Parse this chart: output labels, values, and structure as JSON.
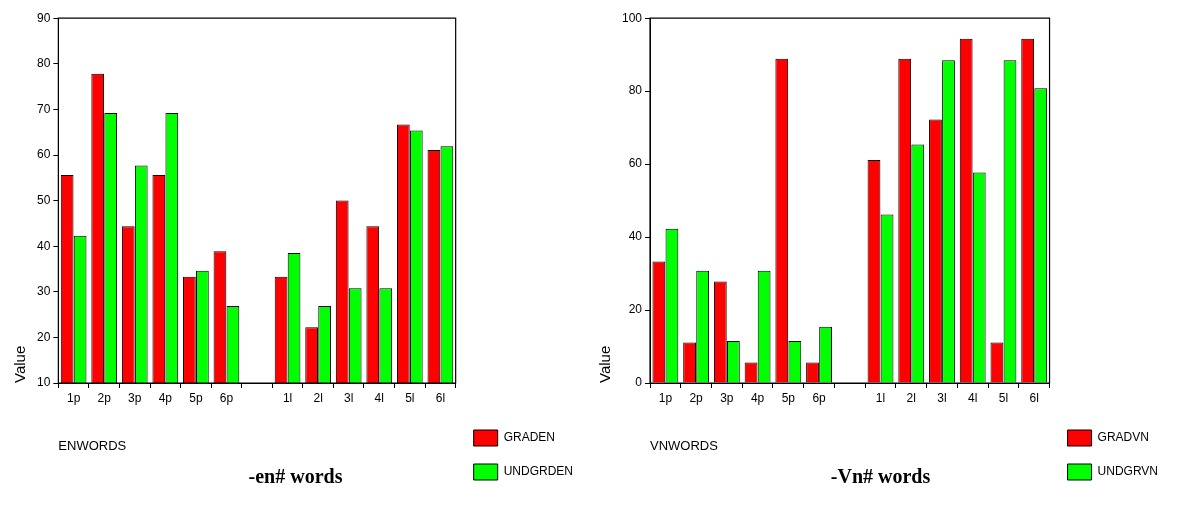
{
  "chart_data": [
    {
      "type": "bar",
      "title": "-en# words",
      "xlabel": "ENWORDS",
      "ylabel": "Value",
      "categories": [
        "1p",
        "2p",
        "3p",
        "4p",
        "5p",
        "6p",
        null,
        "1l",
        "2l",
        "3l",
        "4l",
        "5l",
        "6l"
      ],
      "series": [
        {
          "name": "GRADEN",
          "color": "#ff0000",
          "values": [
            55.6,
            77.8,
            44.4,
            55.6,
            33.3,
            38.9,
            null,
            33.3,
            22.2,
            50,
            44.4,
            66.7,
            61.1
          ]
        },
        {
          "name": "UNDGRDEN",
          "color": "#00ff00",
          "values": [
            42.3,
            69.2,
            57.7,
            69.2,
            34.6,
            26.9,
            null,
            38.5,
            26.9,
            30.8,
            30.8,
            65.4,
            61.9
          ]
        }
      ],
      "ylim": [
        10,
        90
      ],
      "yticks": [
        10,
        20,
        30,
        40,
        50,
        60,
        70,
        80,
        90
      ],
      "grid": false,
      "legend": "right"
    },
    {
      "type": "bar",
      "title": "-Vn# words",
      "xlabel": "VNWORDS",
      "ylabel": "Value",
      "categories": [
        "1p",
        "2p",
        "3p",
        "4p",
        "5p",
        "6p",
        null,
        "1l",
        "2l",
        "3l",
        "4l",
        "5l",
        "6l"
      ],
      "series": [
        {
          "name": "GRADVN",
          "color": "#ff0000",
          "values": [
            33.3,
            11.1,
            27.8,
            5.6,
            88.9,
            5.6,
            null,
            61.1,
            88.9,
            72.2,
            94.4,
            11.1,
            94.4
          ]
        },
        {
          "name": "UNDGRVN",
          "color": "#00ff00",
          "values": [
            42.3,
            30.8,
            11.5,
            30.8,
            11.5,
            15.4,
            null,
            46.2,
            65.4,
            88.5,
            57.7,
            88.5,
            80.8
          ]
        }
      ],
      "ylim": [
        0,
        100
      ],
      "yticks": [
        0,
        20,
        40,
        60,
        80,
        100
      ],
      "grid": false,
      "legend": "right"
    }
  ]
}
